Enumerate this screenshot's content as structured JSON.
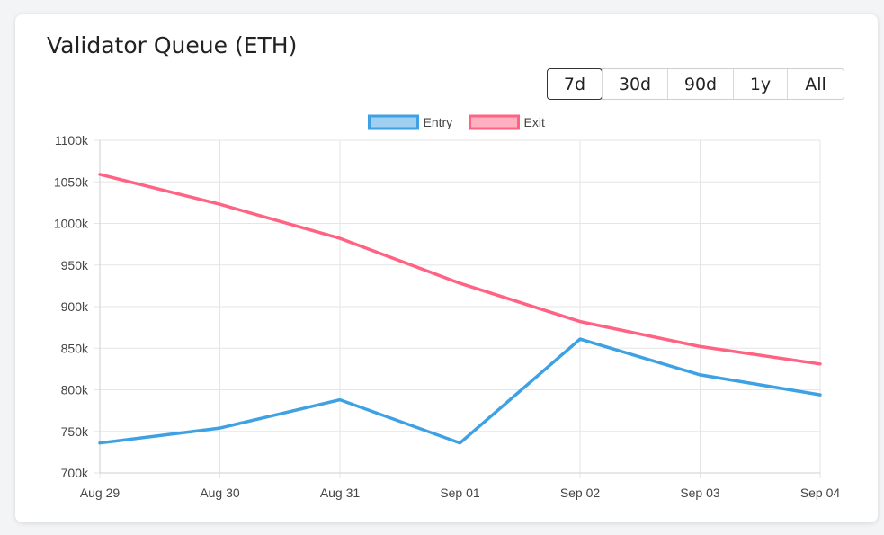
{
  "card": {
    "title": "Validator Queue (ETH)"
  },
  "range_selector": {
    "options": [
      "7d",
      "30d",
      "90d",
      "1y",
      "All"
    ],
    "selected": "7d"
  },
  "chart_data": {
    "type": "line",
    "title": "",
    "xlabel": "",
    "ylabel": "",
    "categories": [
      "Aug 29",
      "Aug 30",
      "Aug 31",
      "Sep 01",
      "Sep 02",
      "Sep 03",
      "Sep 04"
    ],
    "ylim": [
      700000,
      1100000
    ],
    "yticks": [
      700000,
      750000,
      800000,
      850000,
      900000,
      950000,
      1000000,
      1050000,
      1100000
    ],
    "ytick_labels": [
      "700k",
      "750k",
      "800k",
      "850k",
      "900k",
      "950k",
      "1000k",
      "1050k",
      "1100k"
    ],
    "grid": true,
    "legend_position": "top-center",
    "series": [
      {
        "name": "Entry",
        "color": "#3ea1e4",
        "fill": "#9fd0f2",
        "values": [
          736000,
          754000,
          788000,
          736000,
          861000,
          818000,
          794000
        ]
      },
      {
        "name": "Exit",
        "color": "#ff6384",
        "fill": "#ffb1c1",
        "values": [
          1059000,
          1023000,
          982000,
          928000,
          882000,
          852000,
          831000
        ]
      }
    ]
  }
}
